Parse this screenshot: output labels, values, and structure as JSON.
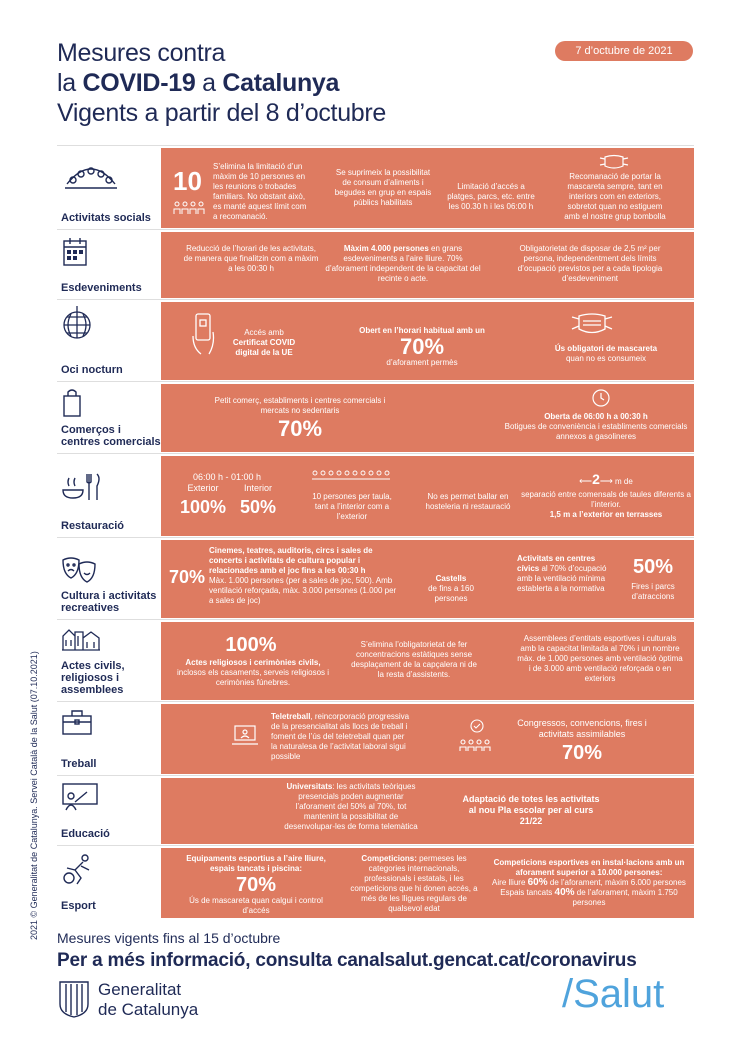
{
  "header": {
    "line1": "Mesures contra",
    "line2_pre": "la ",
    "line2_b1": "COVID-19",
    "line2_mid": " a ",
    "line2_b2": "Catalunya",
    "line3": "Vigents a partir del 8 d’octubre",
    "date": "7 d’octubre de 2021"
  },
  "side_credit": "2021 © Generalitat de Catalunya. Servei Català de la Salut (07.10.2021)",
  "rows": {
    "socials": {
      "label": "Activitats socials",
      "number": "10",
      "c1": "S’elimina la limitació d’un màxim de 10 persones en les reunions o trobades familiars. No obstant això, es manté aquest límit com a recomanació.",
      "c2": "Se suprimeix la possibilitat de consum d’aliments i begudes en grup en espais públics habilitats",
      "c3": "Limitació d’accés a platges, parcs, etc. entre les 00.30 h i les 06:00 h",
      "c4": "Recomanació de portar la mascareta sempre, tant en interiors com en exteriors, sobretot quan no estiguem amb el nostre grup bombolla"
    },
    "esdeveniments": {
      "label": "Esdeveniments",
      "c1": "Reducció de l’horari de les activitats, de manera que finalitzin com a màxim a les 00:30 h",
      "c2_b": "Màxim 4.000 persones",
      "c2": " en grans esdeveniments a l’aire lliure. 70% d’aforament independent de la capacitat del recinte o acte.",
      "c3": "Obligatorietat de disposar de 2,5 m² per persona, independentment dels límits d’ocupació previstos per a cada tipologia d’esdeveniment"
    },
    "oci": {
      "label": "Oci nocturn",
      "c1": "Accés amb",
      "c1_b": "Certificat COVID digital de la UE",
      "c2_b": "Obert en l’horari habitual amb un",
      "c2_big": "70%",
      "c2": "d’aforament permès",
      "c3_b": "Ús obligatori de mascareta",
      "c3": "quan no es consumeix"
    },
    "comercos": {
      "label": "Comerços i centres comercials",
      "c1": "Petit comerç, establiments i centres comercials i mercats no sedentaris",
      "c1_big": "70%",
      "c2_b": "Oberta de 06:00 h a 00:30 h",
      "c2": "Botigues de conveniència i establiments comercials annexos a gasolineres"
    },
    "restauracio": {
      "label": "Restauració",
      "hours": "06:00 h - 01:00 h",
      "ext": "Exterior",
      "int": "Interior",
      "ext_big": "100%",
      "int_big": "50%",
      "c2": "10 persones per taula, tant a l’interior com a l’exterior",
      "c3": "No es permet ballar en hosteleria ni restauració",
      "c4_big": "2",
      "c4_unit": "m de",
      "c4": "separació entre comensals de taules diferents a l’interior.",
      "c4_b": "1,5 m a l’exterior en terrasses"
    },
    "cultura": {
      "label": "Cultura i activitats recreatives",
      "big1": "70%",
      "c1_b": "Cinemes, teatres, auditoris, circs i sales de concerts i activitats de cultura popular i relacionades amb el joc fins a les 00:30 h",
      "c1": "Màx. 1.000 persones (per a sales de joc, 500). Amb ventilació reforçada, màx. 3.000 persones (1.000 per a sales de joc)",
      "c2_b": "Castells",
      "c2": "de fins a 160 persones",
      "c3_b": "Activitats en centres cívics",
      "c3": " al 70% d’ocupació amb la ventilació mínima establerta a la normativa",
      "big2": "50%",
      "c4": "Fires i parcs d’atraccions"
    },
    "actes": {
      "label": "Actes civils, religiosos i assemblees",
      "big": "100%",
      "c1_b": "Actes religiosos i cerimònies civils,",
      "c1": "inclosos els casaments, serveis religiosos i cerimònies fúnebres.",
      "c2": "S’elimina l’obligatorietat de fer concentracions estàtiques sense desplaçament de la capçalera ni de la resta d’assistents.",
      "c3": "Assemblees d’entitats esportives i culturals amb la capacitat limitada al 70% i un nombre màx. de 1.000 persones amb ventilació òptima i de 3.000 amb ventilació reforçada o en exteriors"
    },
    "treball": {
      "label": "Treball",
      "c1_b": "Teletreball",
      "c1": ", reincorporació progressiva de la presencialitat als llocs de treball i foment de l’ús del teletreball quan per la naturalesa de l’activitat laboral sigui possible",
      "c2": "Congressos, convencions, fires i activitats assimilables",
      "c2_big": "70%"
    },
    "educacio": {
      "label": "Educació",
      "c1_b": "Universitats",
      "c1": ": les activitats teòriques presencials poden augmentar l’aforament del 50% al 70%, tot mantenint la possibilitat de desenvolupar-les de forma telemàtica",
      "c2_b": "Adaptació de totes les activitats al nou Pla escolar per al curs 21/22"
    },
    "esport": {
      "label": "Esport",
      "c1_b": "Equipaments esportius a l’aire lliure, espais tancats i piscina:",
      "c1_big": "70%",
      "c1": "Ús de mascareta quan calgui i control d’accés",
      "c2_b": "Competicions:",
      "c2": " permeses les categories internacionals, professionals i estatals, i les competicions que hi donen accés, a més de les lligues regulars de qualsevol edat",
      "c3_b": "Competicions esportives en instal·lacions amb un aforament superior a 10.000 persones:",
      "c3a_pre": "Aire lliure ",
      "c3a_b": "60%",
      "c3a": " de l’aforament, màxim 6.000 persones",
      "c3b_pre": "Espais tancats ",
      "c3b_b": "40%",
      "c3b": " de l’aforament, màxim 1.750 persones"
    }
  },
  "footer": {
    "line1": "Mesures vigents fins al 15 d’octubre",
    "line2": "Per a més informació, consulta canalsalut.gencat.cat/coronavirus",
    "logo1": "Generalitat",
    "logo2": "de Catalunya",
    "salut": "/Salut"
  },
  "colors": {
    "panel": "#de7b61",
    "navy": "#1f2a56",
    "salut": "#4fa3dc"
  }
}
